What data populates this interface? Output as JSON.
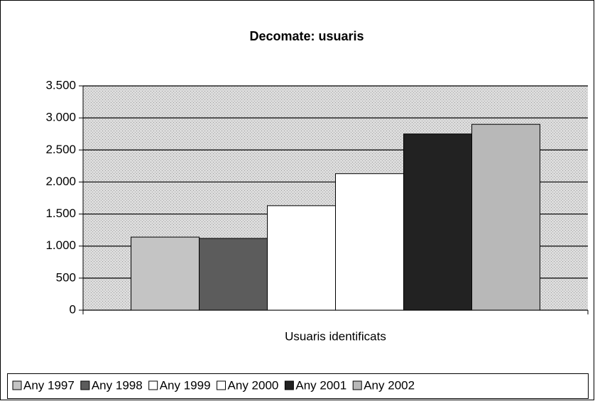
{
  "chart_data": {
    "type": "bar",
    "title": "Decomate: usuaris",
    "categories": [
      "Usuaris identificats"
    ],
    "series": [
      {
        "name": "Any 1997",
        "color": "#c4c4c4",
        "values": [
          1140
        ]
      },
      {
        "name": "Any 1998",
        "color": "#5c5c5c",
        "values": [
          1120
        ]
      },
      {
        "name": "Any 1999",
        "color": "#ffffff",
        "values": [
          1630
        ]
      },
      {
        "name": "Any 2000",
        "color": "#ffffff",
        "values": [
          2130
        ]
      },
      {
        "name": "Any 2001",
        "color": "#222222",
        "values": [
          2750
        ]
      },
      {
        "name": "Any 2002",
        "color": "#b8b8b8",
        "values": [
          2900
        ]
      }
    ],
    "ylim": [
      0,
      3500
    ],
    "yticks": [
      0,
      500,
      {
        "value": 1000,
        "label": "1.000"
      },
      {
        "value": 1500,
        "label": "1.500"
      },
      {
        "value": 2000,
        "label": "2.000"
      },
      {
        "value": 2500,
        "label": "2.500"
      },
      {
        "value": 3000,
        "label": "3.000"
      },
      {
        "value": 3500,
        "label": "3.500"
      }
    ],
    "grid": true,
    "legend": "bottom"
  }
}
